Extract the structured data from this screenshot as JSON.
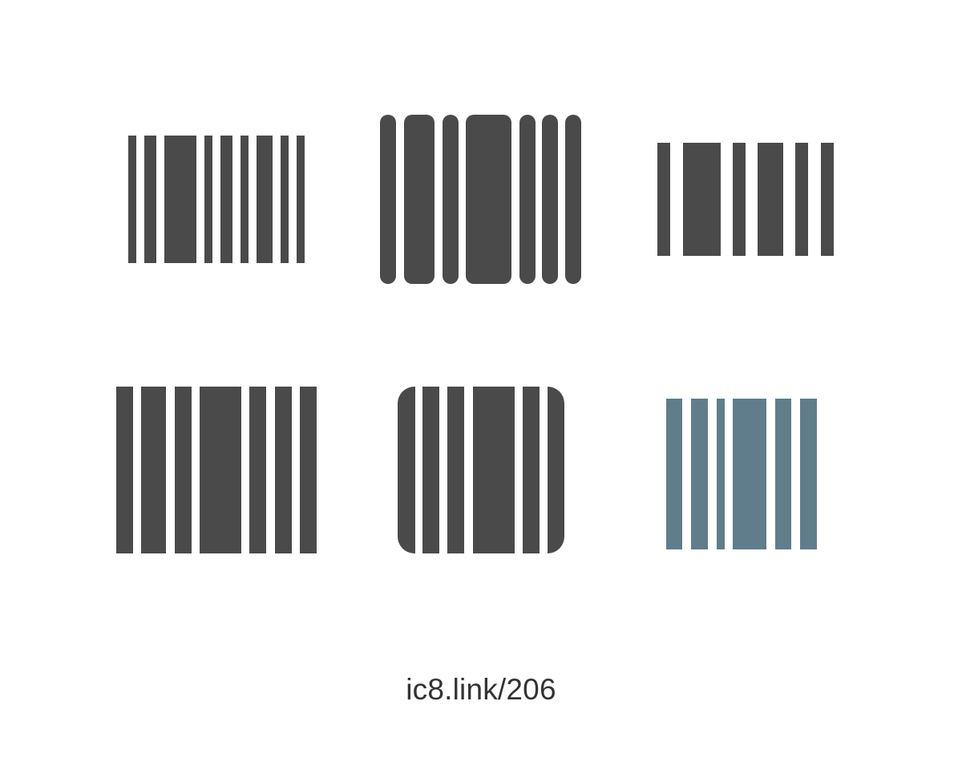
{
  "icons": [
    {
      "name": "barcode-icon",
      "style": "plain",
      "color": "#4a4a4a"
    },
    {
      "name": "barcode-icon",
      "style": "rounded-bars",
      "color": "#4a4a4a"
    },
    {
      "name": "barcode-icon",
      "style": "sparse",
      "color": "#4a4a4a"
    },
    {
      "name": "barcode-icon",
      "style": "filled",
      "color": "#4a4a4a"
    },
    {
      "name": "barcode-icon",
      "style": "rounded-frame",
      "color": "#4a4a4a"
    },
    {
      "name": "barcode-icon",
      "style": "color",
      "color": "#607d8b"
    }
  ],
  "caption": "ic8.link/206"
}
